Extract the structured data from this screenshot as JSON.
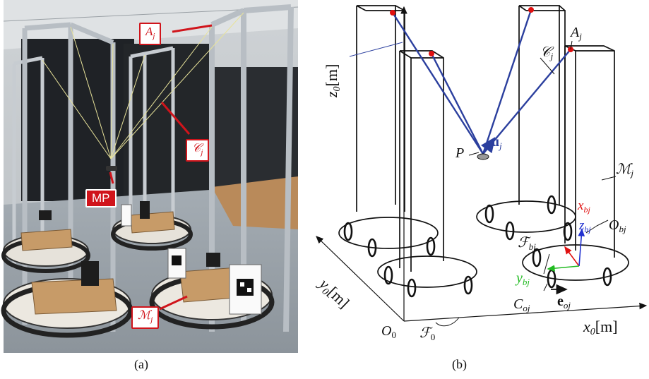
{
  "captions": {
    "a": "(a)",
    "b": "(b)"
  },
  "photo": {
    "labels": {
      "anchor": "A",
      "anchor_sub": "j",
      "cable": "𝒞",
      "cable_sub": "j",
      "platform": "MP",
      "mobile_base": "ℳ",
      "mobile_base_sub": "j"
    }
  },
  "diagram": {
    "labels": {
      "z_axis": "z",
      "z_axis_sub": "0",
      "z_unit": "[m]",
      "y_axis": "y",
      "y_axis_sub": "0",
      "y_unit": "[m]",
      "x_axis": "x",
      "x_axis_sub": "0",
      "x_unit": "[m]",
      "origin": "O",
      "origin_sub": "0",
      "frame0": "ℱ",
      "frame0_sub": "0",
      "point_p": "P",
      "unit_vector": "u",
      "unit_vector_sub": "j",
      "anchor": "A",
      "anchor_sub": "j",
      "cable": "𝒞",
      "cable_sub": "j",
      "mobile_base": "ℳ",
      "mobile_base_sub": "j",
      "xb": "x",
      "xb_sub": "bj",
      "zb": "z",
      "zb_sub": "bj",
      "yb": "y",
      "yb_sub": "bj",
      "ob": "O",
      "ob_sub": "bj",
      "fb": "ℱ",
      "fb_sub": "bj",
      "co": "C",
      "co_sub": "oj",
      "eo": "e",
      "eo_sub": "oj"
    },
    "colors": {
      "cable": "#2b3f9e",
      "anchor_point": "#e01010",
      "x_axis_body": "#e01010",
      "z_axis_body": "#2030d0",
      "y_axis_body": "#22bb22",
      "structure": "#111111"
    }
  }
}
